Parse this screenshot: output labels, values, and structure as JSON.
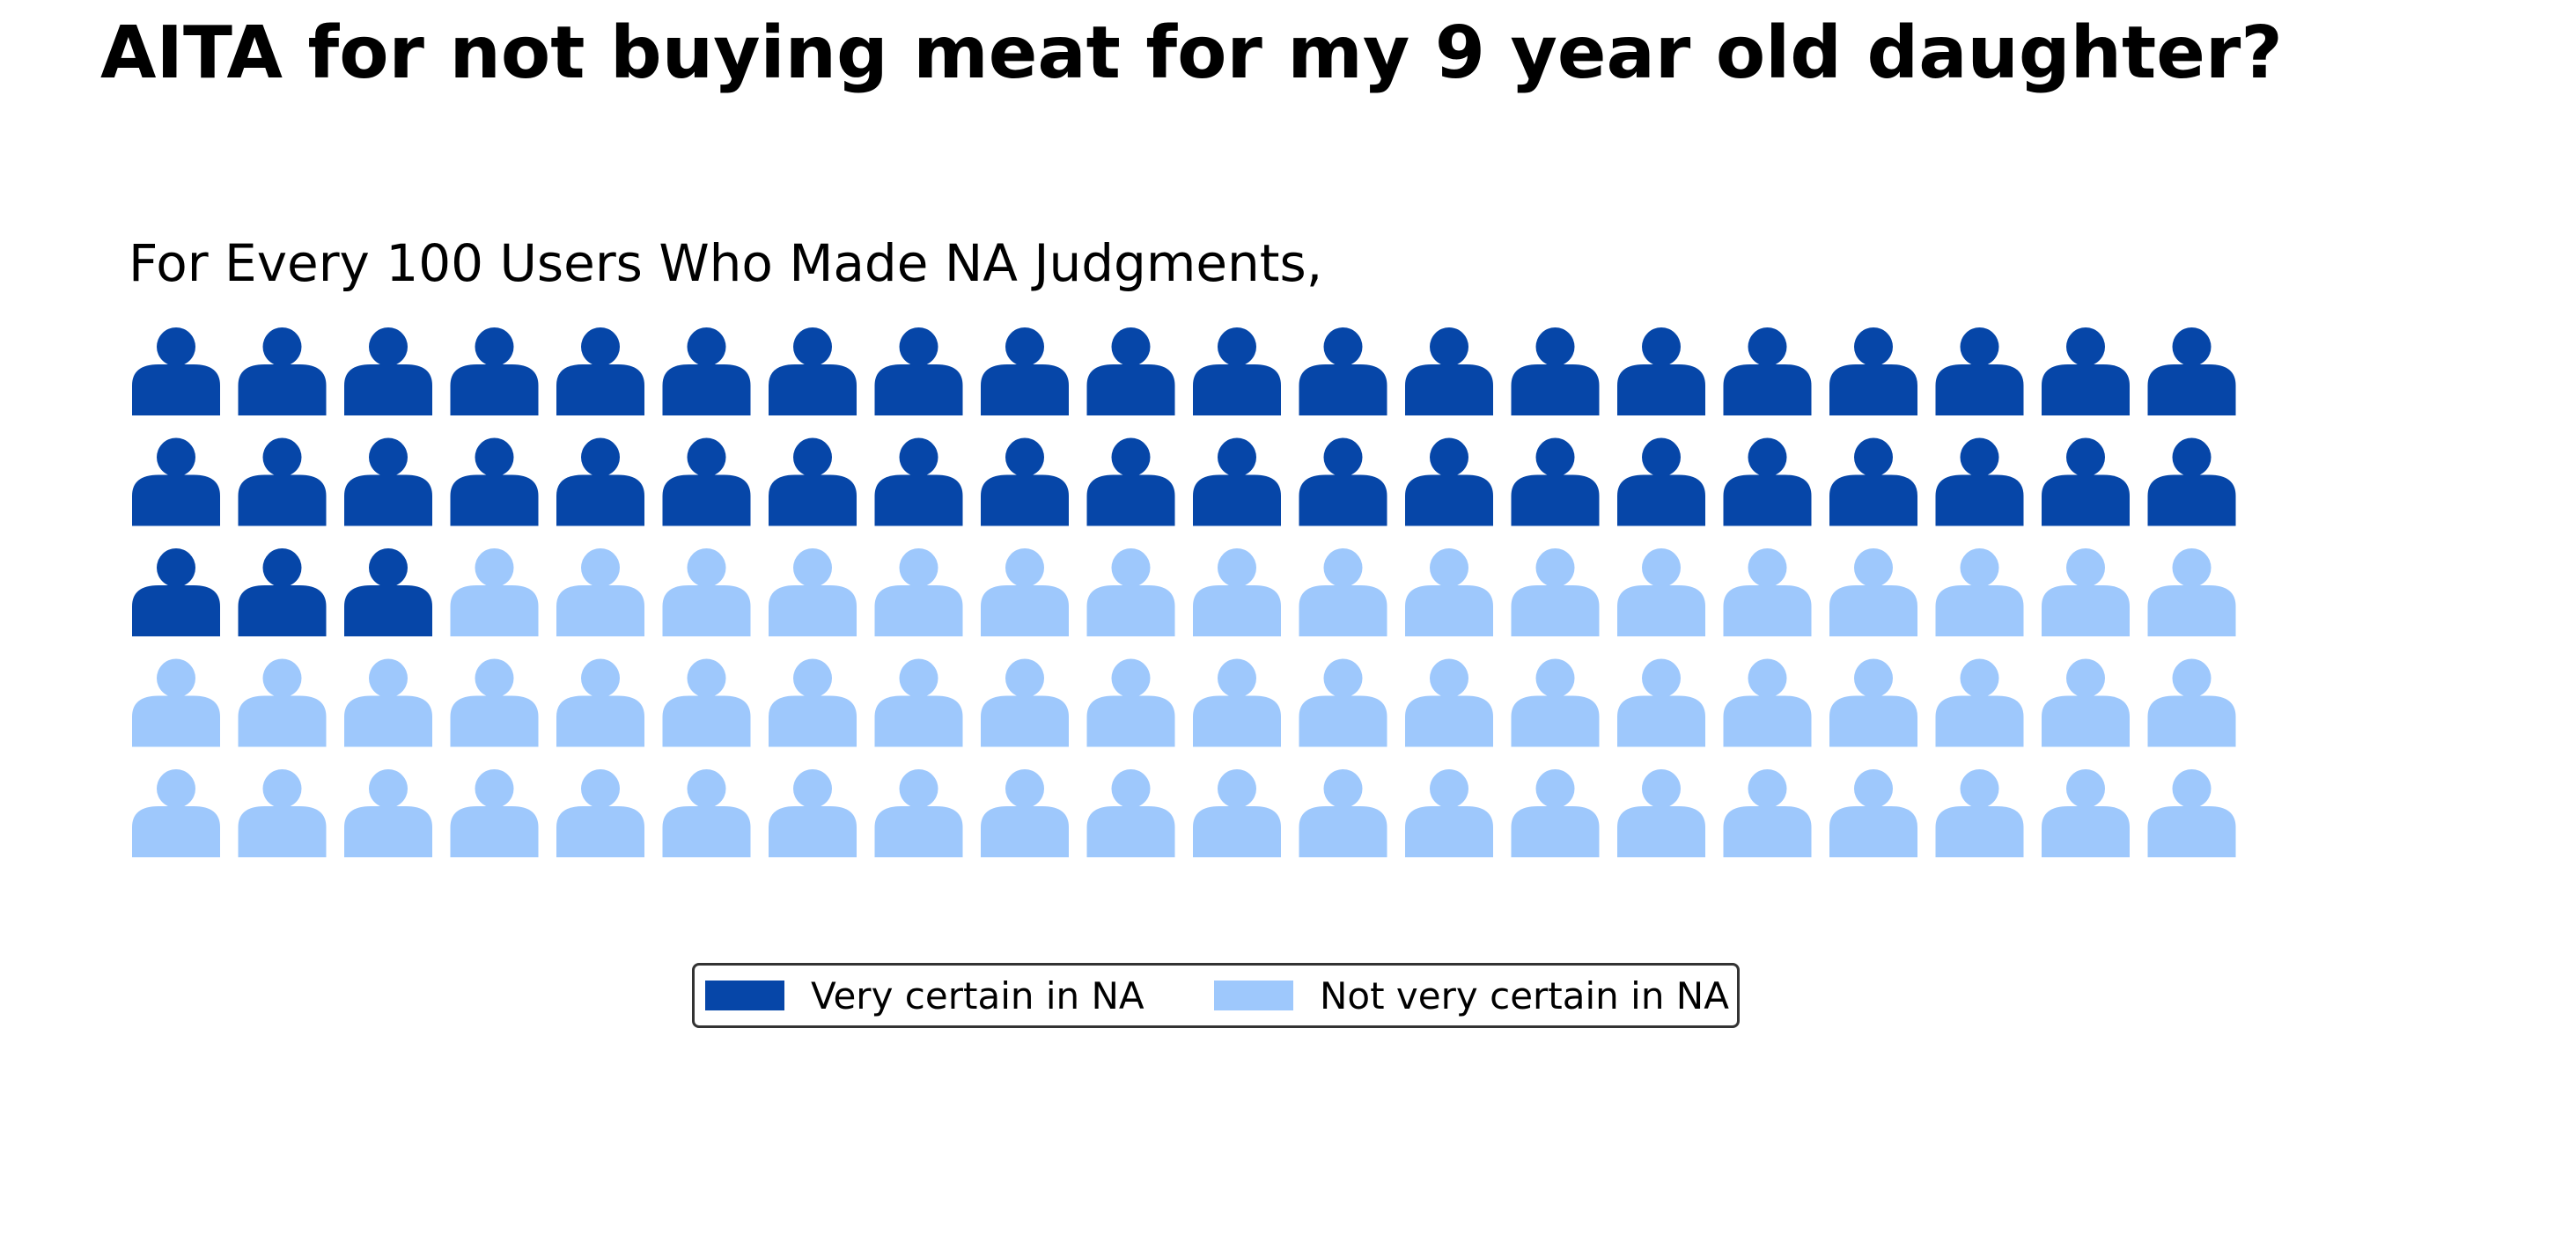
{
  "title": "AITA for not buying meat for my 9 year old daughter?",
  "subtitle": "For Every 100 Users Who Made NA Judgments,",
  "colors": {
    "very_certain": "#0646a8",
    "not_very_certain": "#9ec8fc"
  },
  "chart_data": {
    "type": "pictogram",
    "icon": "person-icon",
    "total": 100,
    "grid": {
      "rows": 5,
      "columns": 20
    },
    "fill_order": "row-major",
    "series": [
      {
        "name": "Very certain in NA",
        "value": 43,
        "color": "#0646a8"
      },
      {
        "name": "Not very certain in NA",
        "value": 57,
        "color": "#9ec8fc"
      }
    ],
    "legend": {
      "position": "bottom-center",
      "entries": [
        "Very certain in NA",
        "Not very certain in NA"
      ]
    }
  }
}
